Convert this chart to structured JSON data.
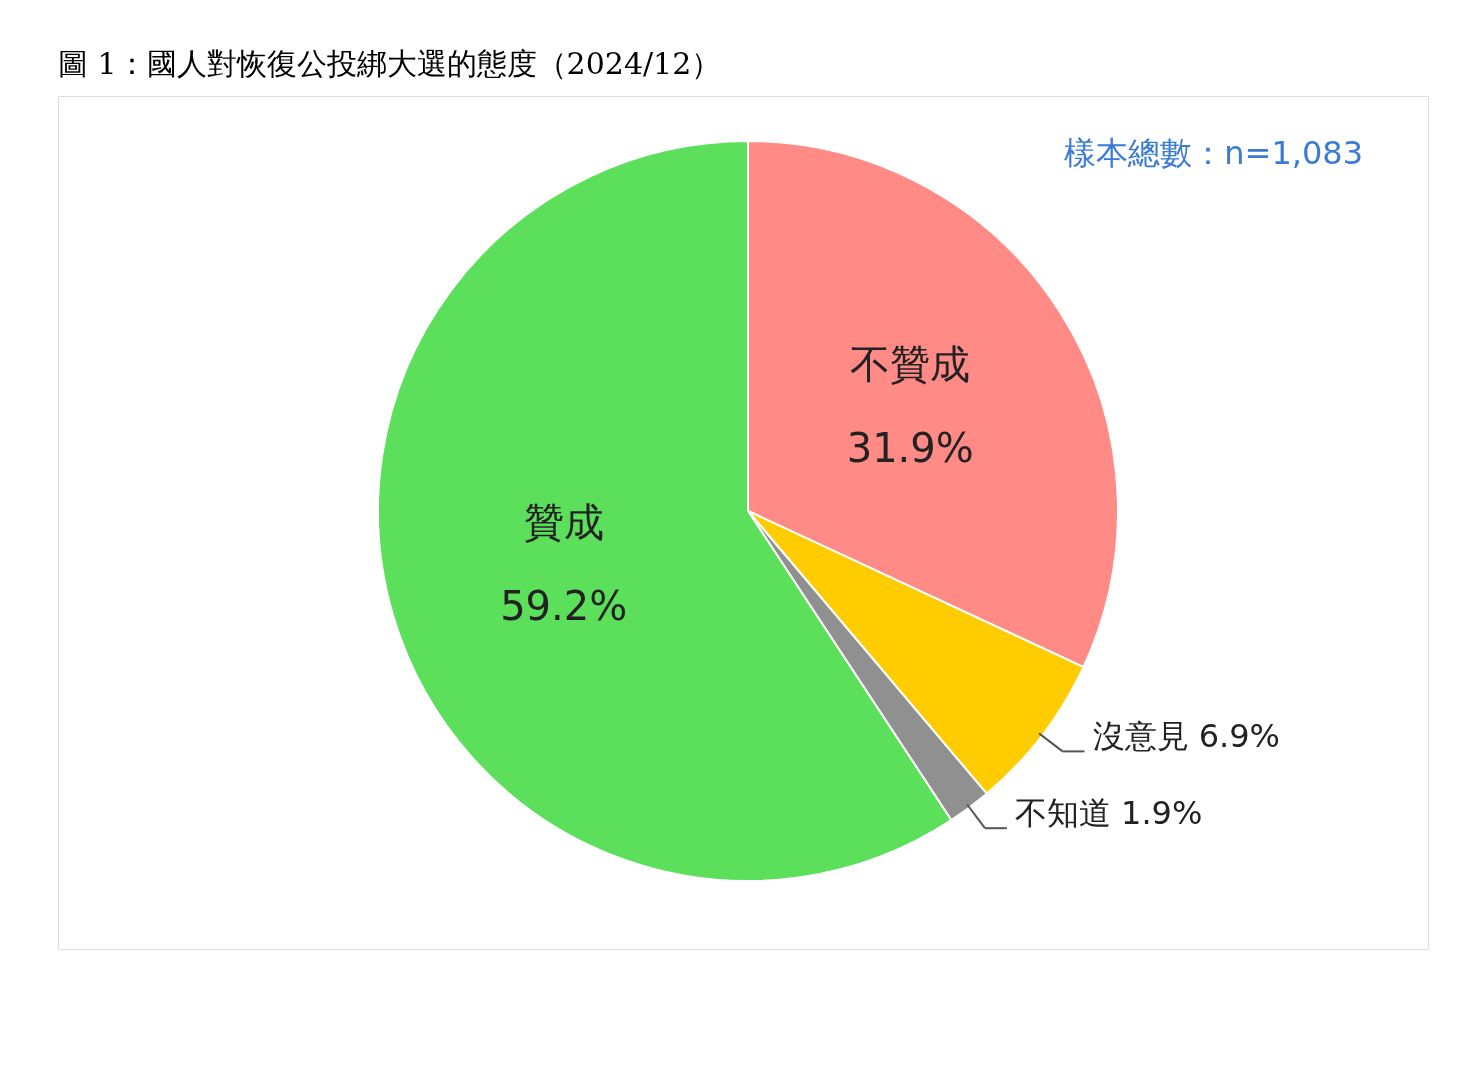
{
  "chart_data": {
    "type": "pie",
    "title": "圖 1：國人對恢復公投綁大選的態度（2024/12）",
    "categories": [
      "不贊成",
      "沒意見",
      "不知道",
      "贊成"
    ],
    "values": [
      31.9,
      6.9,
      1.9,
      59.2
    ],
    "value_labels": [
      "31.9%",
      "6.9%",
      "1.9%",
      "59.2%"
    ],
    "colors": [
      "#ff8a86",
      "#ffcc00",
      "#909090",
      "#5ce05c"
    ],
    "annotations": [
      "樣本總數：n=1,083"
    ],
    "legend": false
  }
}
